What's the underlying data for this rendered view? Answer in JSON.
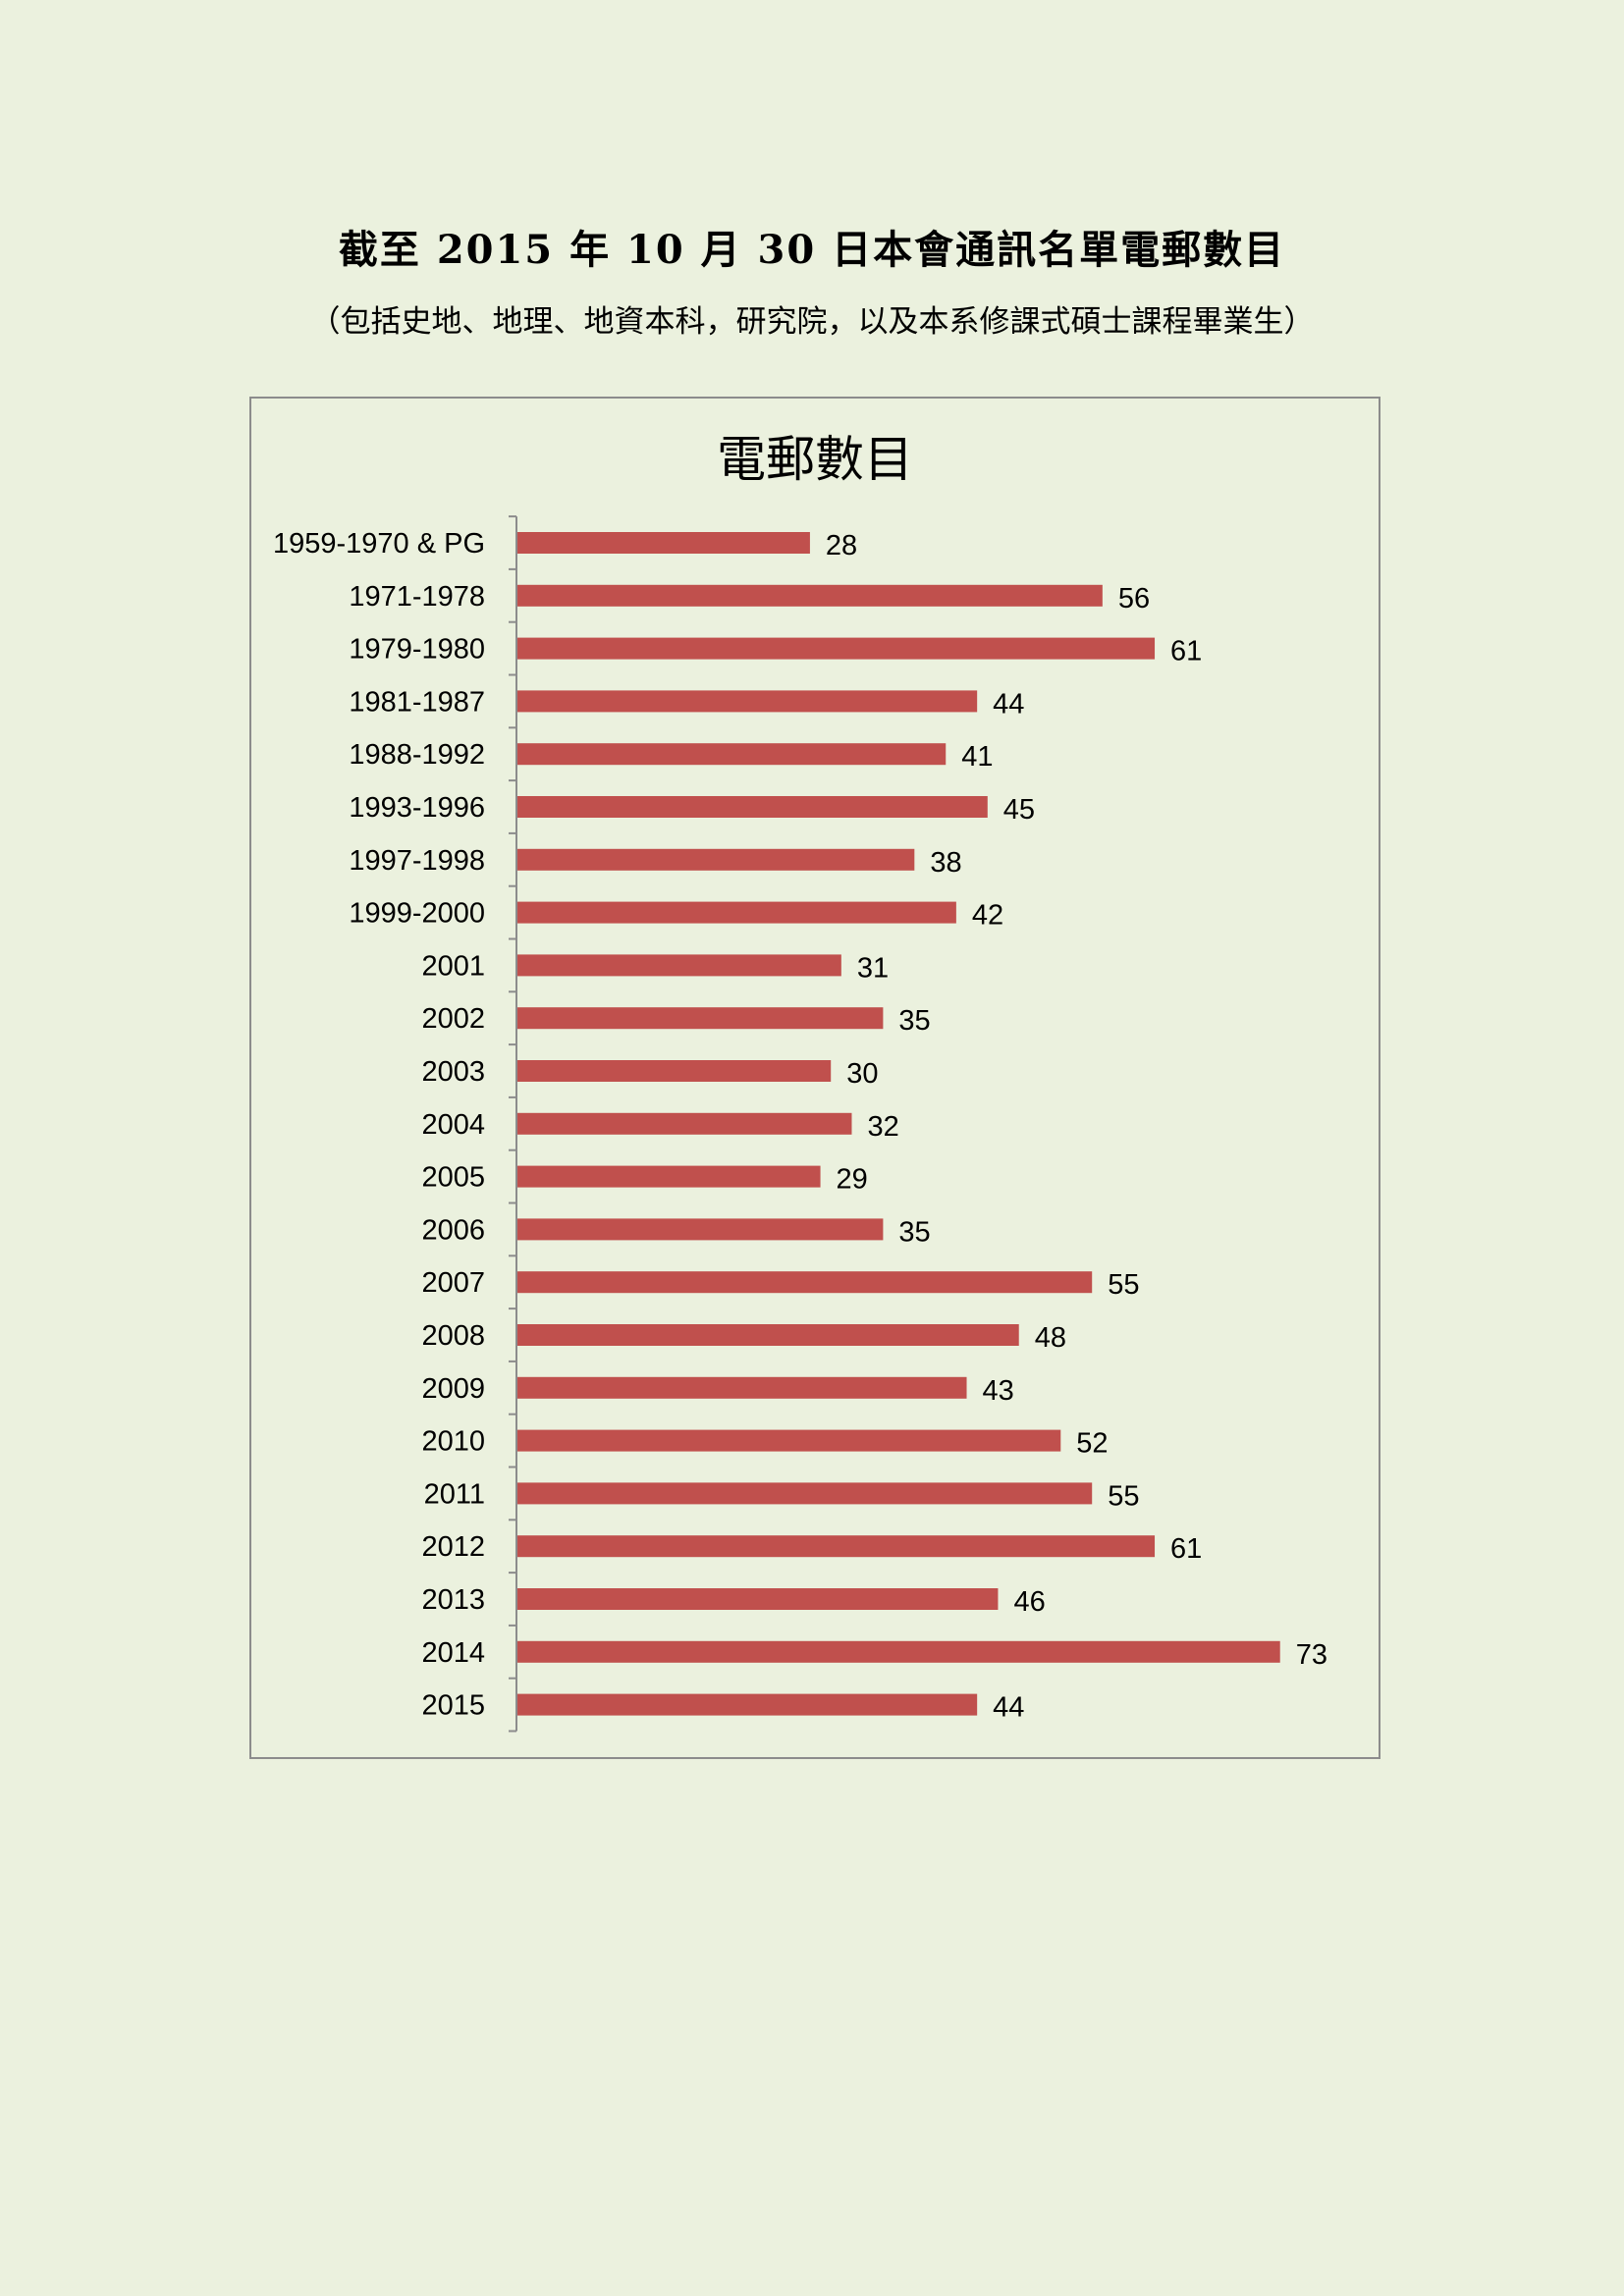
{
  "page": {
    "title": "截至 2015 年 10 月 30 日本會通訊名單電郵數目",
    "subtitle": "（包括史地、地理、地資本科，研究院，以及本系修課式碩士課程畢業生）"
  },
  "colors": {
    "background": "#ebf1de",
    "bar": "#c0504d",
    "frame": "#8c8c8c",
    "axis": "#8c8c8c"
  },
  "chart_data": {
    "type": "bar",
    "orientation": "horizontal",
    "title": "電郵數目",
    "xlabel": "",
    "ylabel": "",
    "grid": false,
    "legend": "none",
    "xlim": [
      0,
      76
    ],
    "categories": [
      "1959-1970 & PG",
      "1971-1978",
      "1979-1980",
      "1981-1987",
      "1988-1992",
      "1993-1996",
      "1997-1998",
      "1999-2000",
      "2001",
      "2002",
      "2003",
      "2004",
      "2005",
      "2006",
      "2007",
      "2008",
      "2009",
      "2010",
      "2011",
      "2012",
      "2013",
      "2014",
      "2015"
    ],
    "values": [
      28,
      56,
      61,
      44,
      41,
      45,
      38,
      42,
      31,
      35,
      30,
      32,
      29,
      35,
      55,
      48,
      43,
      52,
      55,
      61,
      46,
      73,
      44
    ],
    "data_labels": true
  }
}
